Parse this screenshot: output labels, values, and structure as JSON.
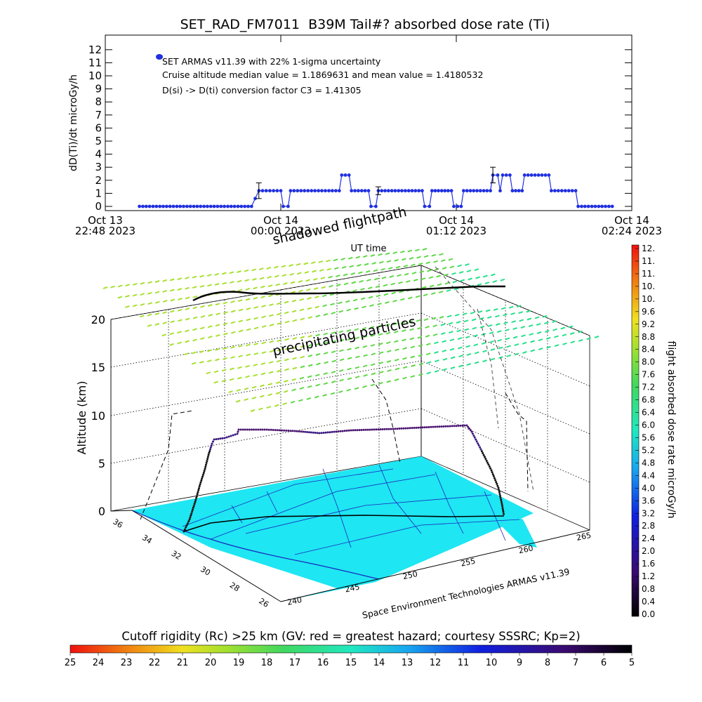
{
  "chart_data": [
    {
      "type": "line",
      "title": "SET_RAD_FM7011  B39M Tail#? absorbed dose rate (Ti)",
      "ylabel": "dD(Ti)/dt microGy/h",
      "xlabel": "UT time",
      "ylim": [
        0,
        12
      ],
      "yticks": [
        "0",
        "1",
        "2",
        "3",
        "4",
        "5",
        "6",
        "7",
        "8",
        "9",
        "10",
        "11",
        "12"
      ],
      "xticks": [
        {
          "line1": "Oct 13",
          "line2": "22:48 2023"
        },
        {
          "line1": "Oct 14",
          "line2": "00:00 2023"
        },
        {
          "line1": "Oct 14",
          "line2": "01:12 2023"
        },
        {
          "line1": "Oct 14",
          "line2": "02:24 2023"
        }
      ],
      "x_range_minutes": [
        0,
        216
      ],
      "legend": {
        "marker_color": "#2030e0",
        "lines": [
          "SET ARMAS v11.39 with 22% 1-sigma uncertainty",
          "Cruise altitude median value = 1.1869631 and mean value = 1.4180532",
          "D(si) -> D(ti) conversion factor C3 = 1.41305"
        ]
      },
      "series": [
        {
          "color": "#2030e0",
          "points": [
            [
              14,
              0
            ],
            [
              60,
              0
            ],
            [
              63,
              1.2
            ],
            [
              72,
              1.2
            ],
            [
              73,
              0
            ],
            [
              75,
              0
            ],
            [
              76,
              1.2
            ],
            [
              96,
              1.2
            ],
            [
              97,
              2.4
            ],
            [
              100,
              2.4
            ],
            [
              101,
              1.2
            ],
            [
              108,
              1.2
            ],
            [
              109,
              0
            ],
            [
              111,
              0
            ],
            [
              112,
              1.2
            ],
            [
              130,
              1.2
            ],
            [
              131,
              0
            ],
            [
              133,
              0
            ],
            [
              134,
              1.2
            ],
            [
              142,
              1.2
            ],
            [
              143,
              0
            ],
            [
              146,
              0
            ],
            [
              147,
              1.2
            ],
            [
              158,
              1.2
            ],
            [
              159,
              2.4
            ],
            [
              161,
              2.4
            ],
            [
              162,
              1.2
            ],
            [
              163,
              2.4
            ],
            [
              166,
              2.4
            ],
            [
              167,
              1.2
            ],
            [
              171,
              1.2
            ],
            [
              172,
              2.4
            ],
            [
              182,
              2.4
            ],
            [
              183,
              1.2
            ],
            [
              193,
              1.2
            ],
            [
              194,
              0
            ],
            [
              208,
              0
            ]
          ]
        }
      ],
      "error_bars": [
        [
          63,
          1.2,
          0.6
        ],
        [
          112,
          1.2,
          0.3
        ],
        [
          159,
          2.4,
          0.6
        ]
      ]
    },
    {
      "type": "scatter",
      "title": "",
      "ylabel": "Altitude (km)",
      "zticks": [
        "0",
        "5",
        "10",
        "15",
        "20"
      ],
      "lat_ticks": [
        "36",
        "34",
        "32",
        "30",
        "28",
        "26"
      ],
      "lon_ticks": [
        "240",
        "245",
        "250",
        "255",
        "260",
        "265"
      ],
      "annotations": {
        "shadowed": "shadowed flightpath",
        "precip": "precipitating particles",
        "credit": "Space Environment Technologies ARMAS v11.39"
      },
      "flight_altitude_km": [
        [
          0,
          0
        ],
        [
          0.05,
          1.5
        ],
        [
          0.1,
          4
        ],
        [
          0.15,
          6.5
        ],
        [
          0.2,
          8
        ],
        [
          0.25,
          8.6
        ],
        [
          0.35,
          8.6
        ],
        [
          0.5,
          8.3
        ],
        [
          0.65,
          8.6
        ],
        [
          0.85,
          8.8
        ],
        [
          0.88,
          6
        ],
        [
          0.92,
          3
        ],
        [
          0.96,
          0.5
        ],
        [
          1.0,
          0
        ]
      ]
    },
    {
      "type": "heatmap",
      "title": "flight absorbed dose rate microGy/h",
      "scale_min": 0.0,
      "scale_max": 12.0,
      "tick_labels": [
        "12.",
        "11.",
        "11.",
        "10.",
        "10.",
        "9.6",
        "9.2",
        "8.8",
        "8.4",
        "8.0",
        "7.6",
        "7.2",
        "6.8",
        "6.4",
        "6.0",
        "5.6",
        "5.2",
        "4.8",
        "4.4",
        "4.0",
        "3.6",
        "3.2",
        "2.8",
        "2.4",
        "2.0",
        "1.6",
        "1.2",
        "0.8",
        "0.4",
        "0.0"
      ]
    },
    {
      "type": "heatmap",
      "title": "Cutoff rigidity (Rc) >25 km (GV: red = greatest hazard; courtesy SSSRC; Kp=2)",
      "scale_min": 25,
      "scale_max": 5,
      "tick_labels": [
        "25",
        "24",
        "23",
        "22",
        "21",
        "20",
        "19",
        "18",
        "17",
        "16",
        "15",
        "14",
        "13",
        "12",
        "11",
        "10",
        "9",
        "8",
        "7",
        "6",
        "5"
      ]
    }
  ]
}
